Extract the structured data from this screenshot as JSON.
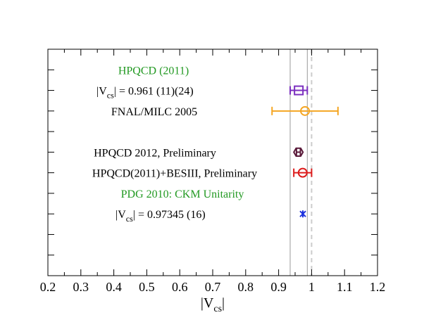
{
  "chart_data": {
    "type": "scatter",
    "orientation": "horizontal-error-bars",
    "xlabel": "|V",
    "xlabel_sub": "cs",
    "xlabel_close": "|",
    "xlim": [
      0.2,
      1.2
    ],
    "x_ticks": [
      "0.2",
      "0.3",
      "0.4",
      "0.5",
      "0.6",
      "0.7",
      "0.8",
      "0.9",
      "1",
      "1.1",
      "1.2"
    ],
    "x_tick_values": [
      0.2,
      0.3,
      0.4,
      0.5,
      0.6,
      0.7,
      0.8,
      0.9,
      1.0,
      1.1,
      1.2
    ],
    "y_ticks": [
      1,
      2,
      3,
      4,
      5,
      6,
      7,
      8,
      9,
      10
    ],
    "ylim": [
      0,
      11
    ],
    "bands": [
      {
        "name": "hpqcd-2011-band",
        "xmin": 0.935,
        "xmax": 0.987,
        "color": "#999999",
        "style": "solid"
      },
      {
        "name": "unitarity-line",
        "x": 0.99997,
        "color": "#cccccc",
        "style": "dashed"
      }
    ],
    "series": [
      {
        "name": "HPQCD (2011)",
        "x": 0.961,
        "xerr": 0.026,
        "y": 9,
        "marker": "square",
        "color": "#7b2fbf"
      },
      {
        "name": "FNAL/MILC 2005",
        "x": 0.98,
        "xerr": 0.1,
        "y": 8,
        "marker": "circle",
        "color": "#f5a623"
      },
      {
        "name": "HPQCD 2012, Preliminary",
        "x": 0.96,
        "xerr": 0.006,
        "y": 6,
        "marker": "hexagon",
        "color": "#5a1a3a"
      },
      {
        "name": "HPQCD(2011)+BESIII, Preliminary",
        "x": 0.973,
        "xerr": 0.027,
        "y": 5,
        "marker": "circle",
        "color": "#dd1c1c"
      },
      {
        "name": "PDG 2010: CKM Unitarity",
        "x": 0.97345,
        "xerr": 0.00016,
        "y": 3,
        "marker": "star",
        "color": "#1a2fdd"
      }
    ],
    "annotations": [
      {
        "id": "hpqcd2011-title",
        "text": "HPQCD (2011)",
        "color": "#229922",
        "row": 10
      },
      {
        "id": "hpqcd2011-value",
        "prefix": "|V",
        "sub": "cs",
        "suffix": "| = 0.961 (11)(24)",
        "color": "#000000",
        "row": 9
      },
      {
        "id": "fnal-label",
        "text": "FNAL/MILC 2005",
        "color": "#000000",
        "row": 8
      },
      {
        "id": "hpqcd2012-label",
        "text": "HPQCD 2012, Preliminary",
        "color": "#000000",
        "row": 6
      },
      {
        "id": "besiii-label",
        "text": "HPQCD(2011)+BESIII, Preliminary",
        "color": "#000000",
        "row": 5
      },
      {
        "id": "pdg-title",
        "text": "PDG 2010: CKM Unitarity",
        "color": "#229922",
        "row": 4
      },
      {
        "id": "pdg-value",
        "prefix": "|V",
        "sub": "cs",
        "suffix": "| = 0.97345 (16)",
        "color": "#000000",
        "row": 3
      }
    ]
  }
}
